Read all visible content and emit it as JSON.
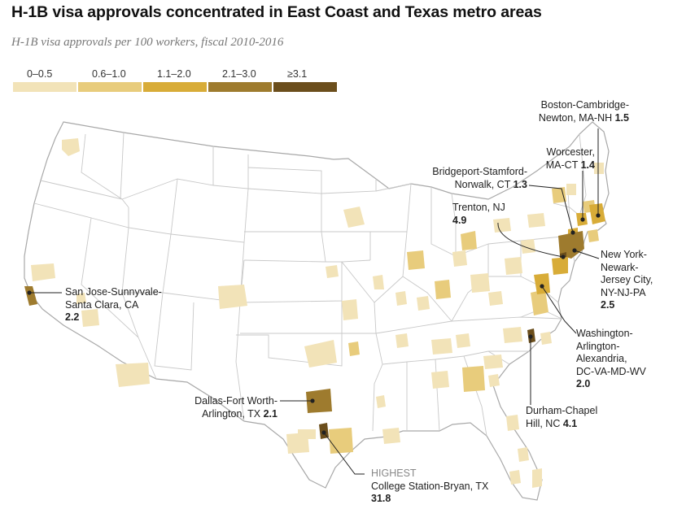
{
  "title": "H-1B visa approvals concentrated in East Coast and Texas metro areas",
  "subtitle": "H-1B visa approvals per 100 workers, fiscal 2010-2016",
  "legend": [
    {
      "label": "0–0.5",
      "color": "#f2e3b8"
    },
    {
      "label": "0.6–1.0",
      "color": "#e8cc7c"
    },
    {
      "label": "1.1–2.0",
      "color": "#d8ac38"
    },
    {
      "label": "2.1–3.0",
      "color": "#9e7b2e"
    },
    {
      "label": "≥3.1",
      "color": "#6b4e1c"
    }
  ],
  "colors": {
    "land": "#ffffff",
    "border": "#c8c8c8",
    "outline": "#a8a8a8",
    "leader": "#222222"
  },
  "callouts": {
    "boston": {
      "line1": "Boston-Cambridge-",
      "line2": "Newton, MA-NH",
      "value": "1.5"
    },
    "worcester": {
      "line1": "Worcester,",
      "line2": "MA-CT",
      "value": "1.4"
    },
    "bridgeport": {
      "line1": "Bridgeport-Stamford-",
      "line2": "Norwalk, CT",
      "value": "1.3"
    },
    "trenton": {
      "line1": "Trenton, NJ",
      "value": "4.9"
    },
    "newyork": {
      "line1": "New York-",
      "line2": "Newark-",
      "line3": "Jersey City,",
      "line4": "NY-NJ-PA",
      "value": "2.5"
    },
    "washington": {
      "line1": "Washington-",
      "line2": "Arlington-",
      "line3": "Alexandria,",
      "line4": "DC-VA-MD-WV",
      "value": "2.0"
    },
    "durham": {
      "line1": "Durham-Chapel",
      "line2": "Hill, NC",
      "value": "4.1"
    },
    "sanjose": {
      "line1": "San Jose-Sunnyvale-",
      "line2": "Santa Clara, CA",
      "value": "2.2"
    },
    "dallas": {
      "line1": "Dallas-Fort Worth-",
      "line2": "Arlington, TX",
      "value": "2.1"
    },
    "college": {
      "tag": "HIGHEST",
      "line1": "College Station-Bryan, TX",
      "value": "31.8"
    }
  }
}
